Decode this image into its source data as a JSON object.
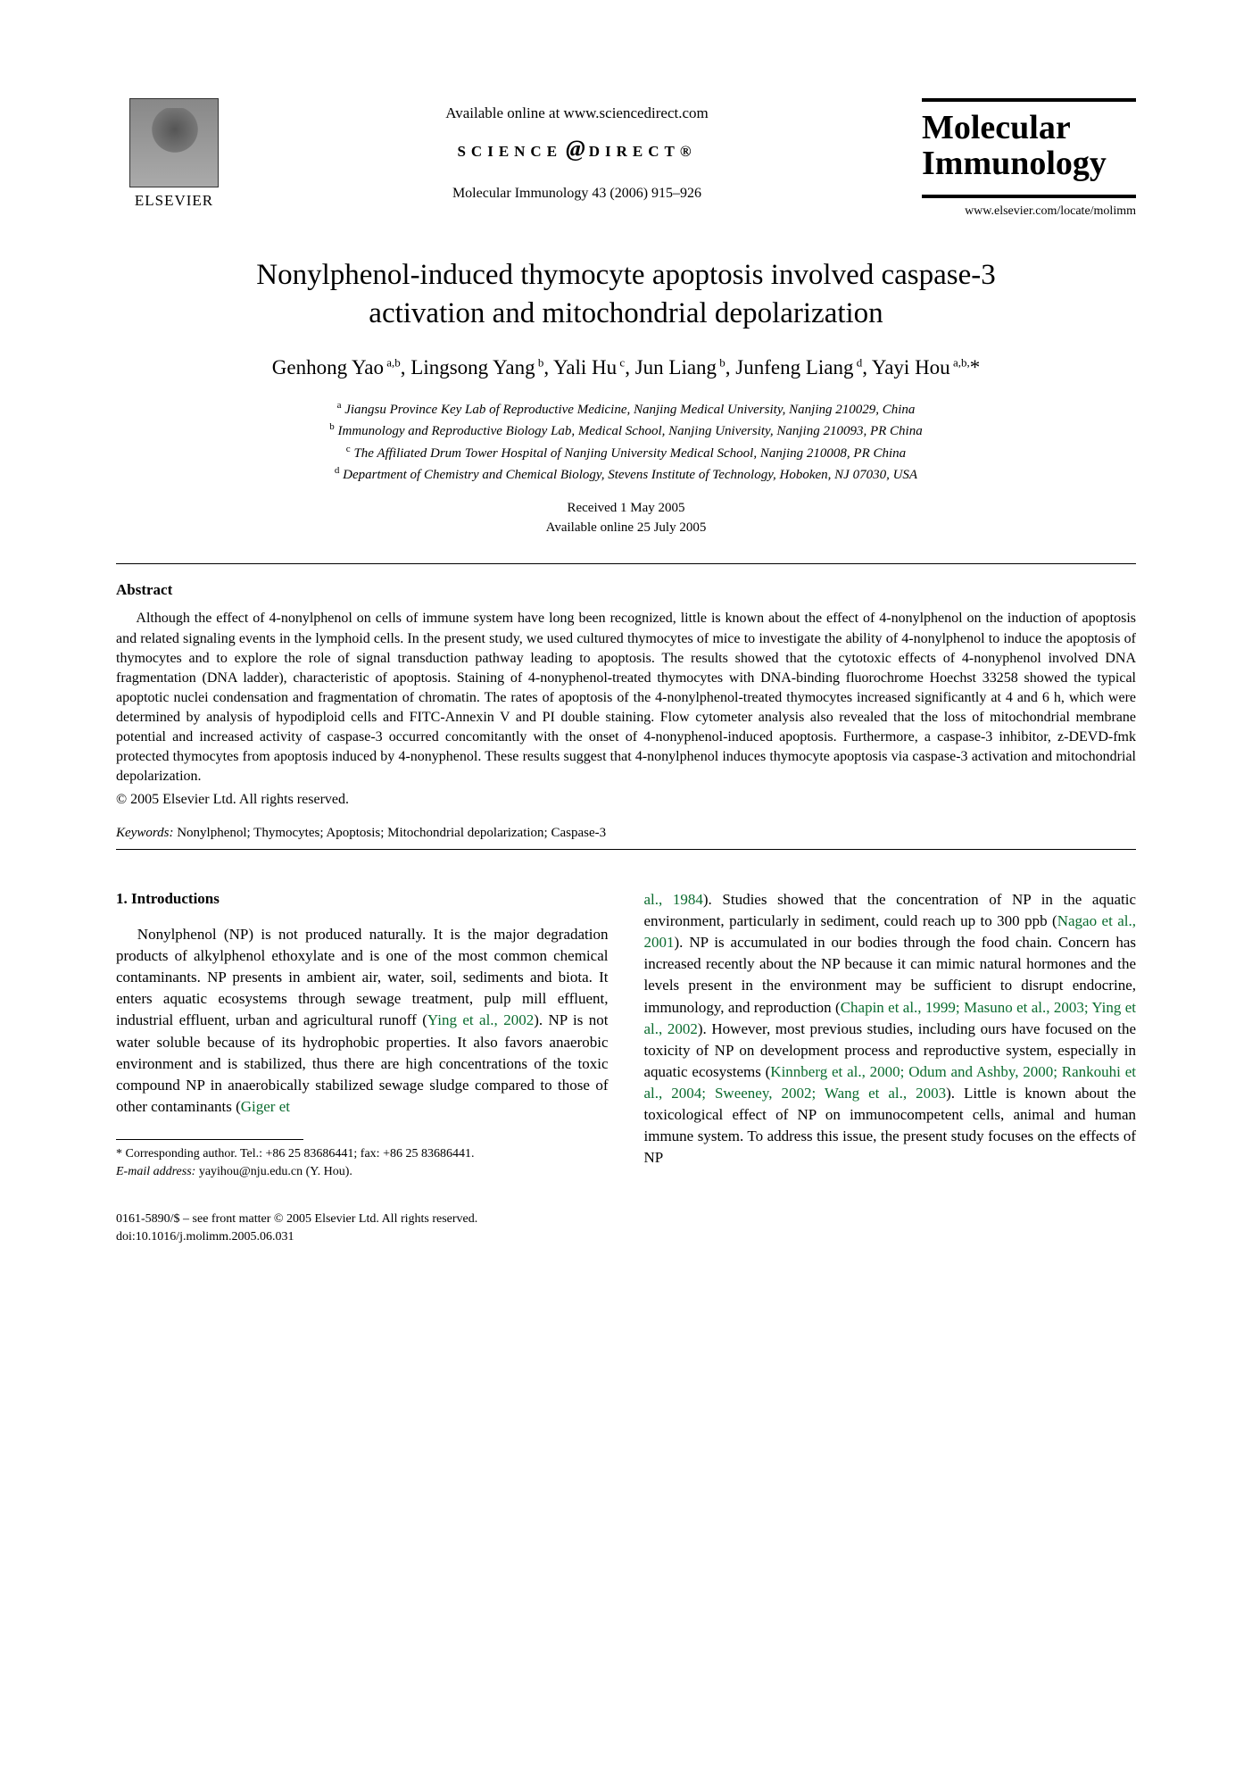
{
  "header": {
    "publisher_name": "ELSEVIER",
    "available_online": "Available online at www.sciencedirect.com",
    "sciencedirect_logo_left": "SCIENCE",
    "sciencedirect_logo_right": "DIRECT®",
    "journal_ref": "Molecular Immunology 43 (2006) 915–926",
    "journal_title_line1": "Molecular",
    "journal_title_line2": "Immunology",
    "journal_url": "www.elsevier.com/locate/molimm"
  },
  "article": {
    "title": "Nonylphenol-induced thymocyte apoptosis involved caspase-3 activation and mitochondrial depolarization",
    "authors_html": "Genhong Yao<sup> a,b</sup>, Lingsong Yang<sup> b</sup>, Yali Hu<sup> c</sup>, Jun Liang<sup> b</sup>, Junfeng Liang<sup> d</sup>, Yayi Hou<sup> a,b,</sup>*",
    "affiliations": {
      "a": "Jiangsu Province Key Lab of Reproductive Medicine, Nanjing Medical University, Nanjing 210029, China",
      "b": "Immunology and Reproductive Biology Lab, Medical School, Nanjing University, Nanjing 210093, PR China",
      "c": "The Affiliated Drum Tower Hospital of Nanjing University Medical School, Nanjing 210008, PR China",
      "d": "Department of Chemistry and Chemical Biology, Stevens Institute of Technology, Hoboken, NJ 07030, USA"
    },
    "received": "Received 1 May 2005",
    "available_online_date": "Available online 25 July 2005"
  },
  "abstract": {
    "heading": "Abstract",
    "body": "Although the effect of 4-nonylphenol on cells of immune system have long been recognized, little is known about the effect of 4-nonylphenol on the induction of apoptosis and related signaling events in the lymphoid cells. In the present study, we used cultured thymocytes of mice to investigate the ability of 4-nonylphenol to induce the apoptosis of thymocytes and to explore the role of signal transduction pathway leading to apoptosis. The results showed that the cytotoxic effects of 4-nonyphenol involved DNA fragmentation (DNA ladder), characteristic of apoptosis. Staining of 4-nonyphenol-treated thymocytes with DNA-binding fluorochrome Hoechst 33258 showed the typical apoptotic nuclei condensation and fragmentation of chromatin. The rates of apoptosis of the 4-nonylphenol-treated thymocytes increased significantly at 4 and 6 h, which were determined by analysis of hypodiploid cells and FITC-Annexin V and PI double staining. Flow cytometer analysis also revealed that the loss of mitochondrial membrane potential and increased activity of caspase-3 occurred concomitantly with the onset of 4-nonyphenol-induced apoptosis. Furthermore, a caspase-3 inhibitor, z-DEVD-fmk protected thymocytes from apoptosis induced by 4-nonyphenol. These results suggest that 4-nonylphenol induces thymocyte apoptosis via caspase-3 activation and mitochondrial depolarization.",
    "copyright": "© 2005 Elsevier Ltd. All rights reserved."
  },
  "keywords": {
    "label": "Keywords:",
    "list": "Nonylphenol; Thymocytes; Apoptosis; Mitochondrial depolarization; Caspase-3"
  },
  "body": {
    "section1_heading": "1. Introductions",
    "col1_para": "Nonylphenol (NP) is not produced naturally. It is the major degradation products of alkylphenol ethoxylate and is one of the most common chemical contaminants. NP presents in ambient air, water, soil, sediments and biota. It enters aquatic ecosystems through sewage treatment, pulp mill effluent, industrial effluent, urban and agricultural runoff (",
    "col1_cite1": "Ying et al., 2002",
    "col1_para_b": "). NP is not water soluble because of its hydrophobic properties. It also favors anaerobic environment and is stabilized, thus there are high concentrations of the toxic compound NP in anaerobically stabilized sewage sludge compared to those of other contaminants (",
    "col1_cite2": "Giger et",
    "col2_cite_cont": "al., 1984",
    "col2_para_a": "). Studies showed that the concentration of NP in the aquatic environment, particularly in sediment, could reach up to 300 ppb (",
    "col2_cite1": "Nagao et al., 2001",
    "col2_para_b": "). NP is accumulated in our bodies through the food chain. Concern has increased recently about the NP because it can mimic natural hormones and the levels present in the environment may be sufficient to disrupt endocrine, immunology, and reproduction (",
    "col2_cite2": "Chapin et al., 1999; Masuno et al., 2003; Ying et al., 2002",
    "col2_para_c": "). However, most previous studies, including ours have focused on the toxicity of NP on development process and reproductive system, especially in aquatic ecosystems (",
    "col2_cite3": "Kinnberg et al., 2000; Odum and Ashby, 2000; Rankouhi et al., 2004; Sweeney, 2002; Wang et al., 2003",
    "col2_para_d": "). Little is known about the toxicological effect of NP on immunocompetent cells, animal and human immune system. To address this issue, the present study focuses on the effects of NP"
  },
  "footnote": {
    "corresponding": "* Corresponding author. Tel.: +86 25 83686441; fax: +86 25 83686441.",
    "email_label": "E-mail address:",
    "email": "yayihou@nju.edu.cn (Y. Hou)."
  },
  "footer": {
    "issn_line": "0161-5890/$ – see front matter © 2005 Elsevier Ltd. All rights reserved.",
    "doi_line": "doi:10.1016/j.molimm.2005.06.031"
  },
  "colors": {
    "text": "#000000",
    "background": "#ffffff",
    "citation": "#0a6b2e"
  }
}
